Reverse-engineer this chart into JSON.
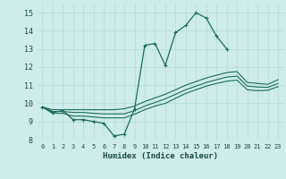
{
  "xlabel": "Humidex (Indice chaleur)",
  "bg_color": "#ceecea",
  "grid_color": "#b8deda",
  "line_color": "#1a6b5a",
  "xlim": [
    -0.5,
    23.5
  ],
  "ylim": [
    8,
    15.5
  ],
  "xticks": [
    0,
    1,
    2,
    3,
    4,
    5,
    6,
    7,
    8,
    9,
    10,
    11,
    12,
    13,
    14,
    15,
    16,
    17,
    18,
    19,
    20,
    21,
    22,
    23
  ],
  "yticks": [
    8,
    9,
    10,
    11,
    12,
    13,
    14,
    15
  ],
  "series_marked": {
    "x": [
      0,
      1,
      2,
      3,
      4,
      5,
      6,
      7,
      8,
      9,
      10,
      11,
      12,
      13,
      14,
      15,
      16,
      17,
      18
    ],
    "y": [
      9.8,
      9.5,
      9.6,
      9.1,
      9.1,
      9.0,
      8.9,
      8.2,
      8.3,
      9.7,
      13.2,
      13.3,
      12.1,
      13.9,
      14.3,
      15.0,
      14.7,
      13.7,
      13.0
    ]
  },
  "series_smooth": [
    {
      "x": [
        0,
        1,
        2,
        3,
        4,
        5,
        6,
        7,
        8,
        9,
        10,
        11,
        12,
        13,
        14,
        15,
        16,
        17,
        18,
        19,
        20,
        21,
        22,
        23
      ],
      "y": [
        9.8,
        9.65,
        9.65,
        9.65,
        9.65,
        9.65,
        9.65,
        9.65,
        9.7,
        9.85,
        10.1,
        10.3,
        10.5,
        10.75,
        11.0,
        11.2,
        11.4,
        11.55,
        11.7,
        11.75,
        11.15,
        11.1,
        11.05,
        11.3
      ]
    },
    {
      "x": [
        0,
        1,
        2,
        3,
        4,
        5,
        6,
        7,
        8,
        9,
        10,
        11,
        12,
        13,
        14,
        15,
        16,
        17,
        18,
        19,
        20,
        21,
        22,
        23
      ],
      "y": [
        9.8,
        9.55,
        9.55,
        9.5,
        9.5,
        9.45,
        9.42,
        9.42,
        9.42,
        9.6,
        9.85,
        10.05,
        10.25,
        10.5,
        10.75,
        10.95,
        11.15,
        11.3,
        11.45,
        11.5,
        10.95,
        10.9,
        10.88,
        11.1
      ]
    },
    {
      "x": [
        0,
        1,
        2,
        3,
        4,
        5,
        6,
        7,
        8,
        9,
        10,
        11,
        12,
        13,
        14,
        15,
        16,
        17,
        18,
        19,
        20,
        21,
        22,
        23
      ],
      "y": [
        9.8,
        9.45,
        9.45,
        9.3,
        9.3,
        9.25,
        9.2,
        9.2,
        9.2,
        9.4,
        9.65,
        9.85,
        10.0,
        10.28,
        10.55,
        10.75,
        10.95,
        11.1,
        11.22,
        11.28,
        10.75,
        10.7,
        10.72,
        10.92
      ]
    }
  ]
}
